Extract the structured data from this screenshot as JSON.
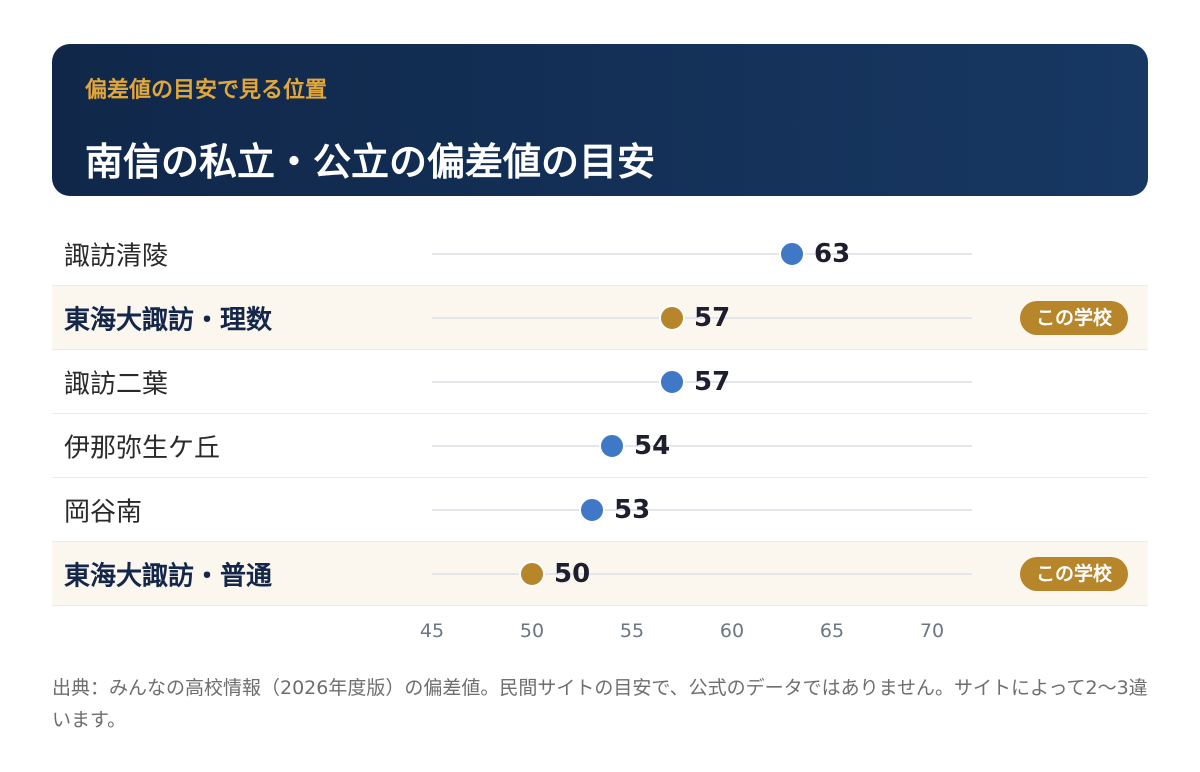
{
  "header": {
    "subtitle": "偏差値の目安で見る位置",
    "title": "南信の私立・公立の偏差値の目安"
  },
  "colors": {
    "header_bg": "#12294b",
    "subtitle": "#e0a73c",
    "dot_default": "#3f78c6",
    "dot_highlight": "#b7852a",
    "row_highlight_bg": "#fbf7ee",
    "badge_bg": "#b7852a"
  },
  "badge_label": "この学校",
  "chart_data": {
    "type": "dot",
    "categories": [
      "諏訪清陵",
      "東海大諏訪・理数",
      "諏訪二葉",
      "伊那弥生ケ丘",
      "岡谷南",
      "東海大諏訪・普通"
    ],
    "values": [
      63,
      57,
      57,
      54,
      53,
      50
    ],
    "highlighted": [
      false,
      true,
      false,
      false,
      false,
      true
    ],
    "xlim": [
      45,
      72
    ],
    "xticks": [
      45,
      50,
      55,
      60,
      65,
      70
    ],
    "grid": false
  },
  "footnote": "出典：みんなの高校情報（2026年度版）の偏差値。民間サイトの目安で、公式のデータではありません。サイトによって2〜3違います。"
}
